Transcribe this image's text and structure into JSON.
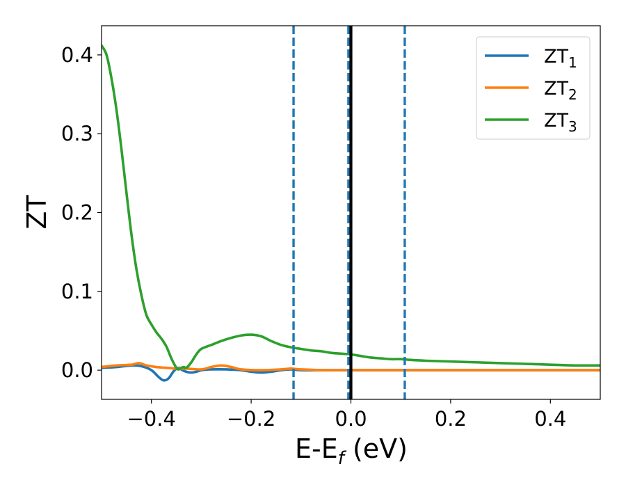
{
  "chart_data": {
    "type": "line",
    "xlabel": "E-E",
    "xlabel_sub": "f",
    "xlabel_unit": " (eV)",
    "ylabel": "ZT",
    "xlim": [
      -0.5,
      0.5
    ],
    "ylim": [
      -0.037,
      0.437
    ],
    "xticks": [
      -0.4,
      -0.2,
      0.0,
      0.2,
      0.4
    ],
    "xtick_labels": [
      "−0.4",
      "−0.2",
      "0.0",
      "0.2",
      "0.4"
    ],
    "yticks": [
      0.0,
      0.1,
      0.2,
      0.3,
      0.4
    ],
    "ytick_labels": [
      "0.0",
      "0.1",
      "0.2",
      "0.3",
      "0.4"
    ],
    "grid": false,
    "legend_position": "top-right",
    "series": [
      {
        "name": "ZT",
        "name_sub": "1",
        "color": "#1f77b4",
        "x": [
          -0.5,
          -0.47,
          -0.44,
          -0.42,
          -0.4,
          -0.385,
          -0.375,
          -0.365,
          -0.355,
          -0.345,
          -0.338,
          -0.33,
          -0.32,
          -0.31,
          -0.3,
          -0.28,
          -0.25,
          -0.22,
          -0.2,
          -0.18,
          -0.16,
          -0.14,
          -0.12,
          -0.1,
          -0.05,
          0.0,
          0.1,
          0.2,
          0.3,
          0.4,
          0.5
        ],
        "y": [
          0.003,
          0.004,
          0.006,
          0.005,
          0.0,
          -0.009,
          -0.013,
          -0.01,
          -0.001,
          0.003,
          0.0,
          -0.002,
          -0.003,
          -0.002,
          0.0,
          0.001,
          0.001,
          0.0,
          -0.002,
          -0.003,
          -0.002,
          0.0,
          0.001,
          0.0,
          0.0,
          0.0,
          0.0,
          0.0,
          0.0,
          0.0,
          0.0
        ]
      },
      {
        "name": "ZT",
        "name_sub": "2",
        "color": "#ff7f0e",
        "x": [
          -0.5,
          -0.47,
          -0.44,
          -0.425,
          -0.41,
          -0.39,
          -0.37,
          -0.35,
          -0.33,
          -0.3,
          -0.28,
          -0.26,
          -0.24,
          -0.22,
          -0.18,
          -0.14,
          -0.12,
          -0.1,
          -0.05,
          0.0,
          0.1,
          0.2,
          0.3,
          0.4,
          0.5
        ],
        "y": [
          0.004,
          0.006,
          0.007,
          0.009,
          0.006,
          0.004,
          0.003,
          0.002,
          0.002,
          0.001,
          0.004,
          0.006,
          0.004,
          0.001,
          0.0,
          0.001,
          0.002,
          0.001,
          0.0,
          0.0,
          0.0,
          0.0,
          0.0,
          0.0,
          0.0
        ]
      },
      {
        "name": "ZT",
        "name_sub": "3",
        "color": "#2ca02c",
        "x": [
          -0.5,
          -0.49,
          -0.48,
          -0.47,
          -0.46,
          -0.45,
          -0.44,
          -0.43,
          -0.42,
          -0.41,
          -0.4,
          -0.39,
          -0.38,
          -0.37,
          -0.36,
          -0.35,
          -0.345,
          -0.34,
          -0.335,
          -0.33,
          -0.32,
          -0.31,
          -0.3,
          -0.28,
          -0.26,
          -0.24,
          -0.22,
          -0.2,
          -0.18,
          -0.16,
          -0.14,
          -0.12,
          -0.1,
          -0.08,
          -0.06,
          -0.04,
          -0.02,
          0.0,
          0.02,
          0.04,
          0.06,
          0.08,
          0.1,
          0.12,
          0.15,
          0.2,
          0.25,
          0.3,
          0.35,
          0.4,
          0.45,
          0.5
        ],
        "y": [
          0.412,
          0.4,
          0.37,
          0.33,
          0.28,
          0.225,
          0.172,
          0.128,
          0.095,
          0.07,
          0.058,
          0.048,
          0.04,
          0.03,
          0.015,
          0.003,
          0.001,
          0.003,
          0.004,
          0.003,
          0.01,
          0.02,
          0.027,
          0.032,
          0.037,
          0.041,
          0.044,
          0.045,
          0.043,
          0.037,
          0.032,
          0.029,
          0.027,
          0.025,
          0.024,
          0.022,
          0.021,
          0.02,
          0.018,
          0.016,
          0.015,
          0.014,
          0.014,
          0.013,
          0.012,
          0.011,
          0.01,
          0.009,
          0.008,
          0.007,
          0.006,
          0.006
        ]
      }
    ],
    "vlines": [
      {
        "x": -0.115,
        "color": "#1f77b4",
        "style": "dashed"
      },
      {
        "x": -0.005,
        "color": "#1f77b4",
        "style": "dashed"
      },
      {
        "x": 0.108,
        "color": "#1f77b4",
        "style": "dashed"
      },
      {
        "x": 0.0,
        "color": "#000000",
        "style": "solid"
      }
    ]
  }
}
